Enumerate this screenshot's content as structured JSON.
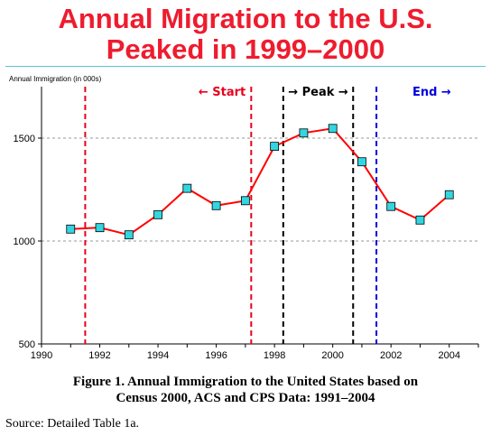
{
  "title_line1": "Annual Migration to the U.S.",
  "title_line2": "Peaked in 1999–2000",
  "caption_line1": "Figure 1.  Annual Immigration to the United States based on",
  "caption_line2": "Census 2000, ACS and CPS Data:  1991–2004",
  "source": "Source:  Detailed Table 1a.",
  "chart_data": {
    "type": "line",
    "ylabel": "Annual Immigration (in 000s)",
    "xlim": [
      1990,
      2005
    ],
    "ylim": [
      500,
      1750
    ],
    "xticks": [
      1990,
      1992,
      1994,
      1996,
      1998,
      2000,
      2002,
      2004
    ],
    "yticks": [
      500,
      1000,
      1500
    ],
    "grid": "horizontal dashed at 1000 and 1500",
    "series": [
      {
        "color": "#ff0000",
        "marker_color": "#33d6e0",
        "x": [
          1991,
          1992,
          1993,
          1994,
          1995,
          1996,
          1997,
          1998,
          1999,
          2000,
          2001,
          2002,
          2003,
          2004
        ],
        "y": [
          1058,
          1065,
          1030,
          1128,
          1256,
          1172,
          1196,
          1460,
          1525,
          1547,
          1385,
          1168,
          1102,
          1225
        ]
      }
    ],
    "vlines": [
      {
        "x": 1991.5,
        "color": "#e8001c"
      },
      {
        "x": 1997.2,
        "color": "#e8001c"
      },
      {
        "x": 1998.3,
        "color": "#000000"
      },
      {
        "x": 2000.7,
        "color": "#000000"
      },
      {
        "x": 2001.5,
        "color": "#0000e0"
      }
    ],
    "annotations": [
      {
        "text": "← Start",
        "x": 1996.2,
        "color": "#e8001c"
      },
      {
        "text": "→ Peak →",
        "x": 1999.5,
        "color": "#000000"
      },
      {
        "text": "End →",
        "x": 2003.4,
        "color": "#0000e0"
      }
    ]
  }
}
